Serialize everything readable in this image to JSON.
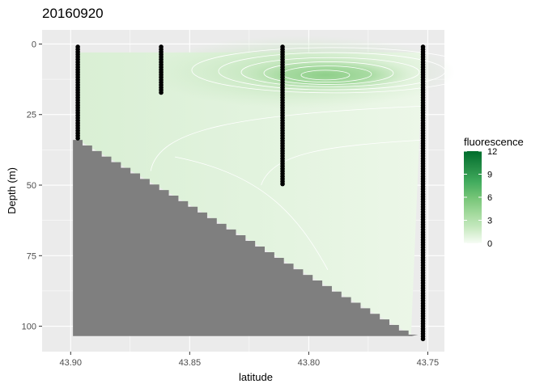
{
  "chart_data": {
    "type": "heatmap",
    "title": "20160920",
    "xlabel": "latitude",
    "ylabel": "Depth (m)",
    "x_reversed": true,
    "y_reversed": true,
    "xlim": [
      43.743,
      43.912
    ],
    "ylim": [
      109,
      -5
    ],
    "x_ticks": [
      {
        "value": 43.9,
        "label": "43.90"
      },
      {
        "value": 43.85,
        "label": "43.85"
      },
      {
        "value": 43.8,
        "label": "43.80"
      },
      {
        "value": 43.75,
        "label": "43.75"
      }
    ],
    "y_ticks": [
      {
        "value": 0,
        "label": "0"
      },
      {
        "value": 25,
        "label": "25"
      },
      {
        "value": 50,
        "label": "50"
      },
      {
        "value": 75,
        "label": "75"
      },
      {
        "value": 100,
        "label": "100"
      }
    ],
    "legend": {
      "title": "fluorescence",
      "placement": "right",
      "range": [
        0,
        12
      ],
      "ticks": [
        "12",
        "9",
        "6",
        "3",
        "0"
      ],
      "colors": [
        "#f7fcf5",
        "#c7e9c0",
        "#a1d99b",
        "#74c476",
        "#41ab5d",
        "#238b45",
        "#006d2c"
      ]
    },
    "stations": [
      {
        "latitude": 43.897,
        "depth_min": 1,
        "depth_max": 34
      },
      {
        "latitude": 43.862,
        "depth_min": 1,
        "depth_max": 18
      },
      {
        "latitude": 43.811,
        "depth_min": 1,
        "depth_max": 50
      },
      {
        "latitude": 43.752,
        "depth_min": 1,
        "depth_max": 105
      }
    ],
    "fluorescence_peak": {
      "latitude": 43.793,
      "depth": 11,
      "value": 5
    },
    "bottom_profile": [
      {
        "latitude": 43.897,
        "depth": 34
      },
      {
        "latitude": 43.85,
        "depth": 57
      },
      {
        "latitude": 43.8,
        "depth": 82
      },
      {
        "latitude": 43.757,
        "depth": 103
      }
    ],
    "background_color": "#ebebeb",
    "bottom_color": "#7f7f7f",
    "grid": true
  }
}
